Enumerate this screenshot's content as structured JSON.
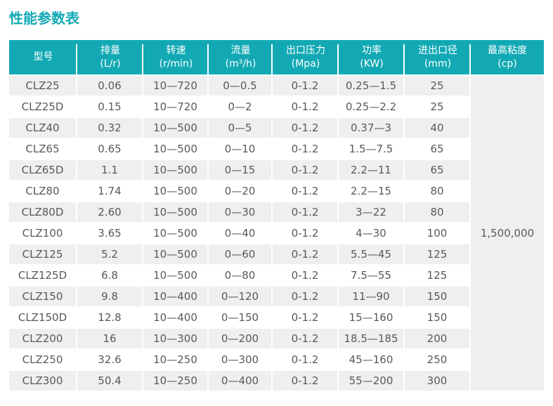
{
  "page": {
    "title": "性能参数表"
  },
  "table": {
    "headers": [
      {
        "key": "model",
        "line1": "型号",
        "line2": ""
      },
      {
        "key": "displacement",
        "line1": "排量",
        "line2": "(L/r)"
      },
      {
        "key": "speed",
        "line1": "转速",
        "line2": "(r/min)"
      },
      {
        "key": "flow",
        "line1": "流量",
        "line2": "(m³/h)"
      },
      {
        "key": "pressure",
        "line1": "出口压力",
        "line2": "(Mpa)"
      },
      {
        "key": "power",
        "line1": "功率",
        "line2": "(KW)"
      },
      {
        "key": "diameter",
        "line1": "进出口径",
        "line2": "(mm)"
      },
      {
        "key": "viscosity",
        "line1": "最高粘度",
        "line2": "(cp)"
      }
    ],
    "rows": [
      [
        "CLZ25",
        "0.06",
        "10—720",
        "0—0.5",
        "0-1.2",
        "0.25—1.5",
        "25"
      ],
      [
        "CLZ25D",
        "0.15",
        "10—720",
        "0—2",
        "0-1.2",
        "0.25—2.2",
        "25"
      ],
      [
        "CLZ40",
        "0.32",
        "10—500",
        "0—5",
        "0-1.2",
        "0.37—3",
        "40"
      ],
      [
        "CLZ65",
        "0.65",
        "10—500",
        "0—10",
        "0-1.2",
        "1.5—7.5",
        "65"
      ],
      [
        "CLZ65D",
        "1.1",
        "10—500",
        "0—15",
        "0-1.2",
        "2.2—11",
        "65"
      ],
      [
        "CLZ80",
        "1.74",
        "10—500",
        "0—20",
        "0-1.2",
        "2.2—15",
        "80"
      ],
      [
        "CLZ80D",
        "2.60",
        "10—500",
        "0—30",
        "0-1.2",
        "3—22",
        "80"
      ],
      [
        "CLZ100",
        "3.65",
        "10—500",
        "0—40",
        "0-1.2",
        "4—30",
        "100"
      ],
      [
        "CLZ125",
        "5.2",
        "10—500",
        "0—60",
        "0-1.2",
        "5.5—45",
        "125"
      ],
      [
        "CLZ125D",
        "6.8",
        "10—500",
        "0—80",
        "0-1.2",
        "7.5—55",
        "125"
      ],
      [
        "CLZ150",
        "9.8",
        "10—400",
        "0—120",
        "0-1.2",
        "11—90",
        "150"
      ],
      [
        "CLZ150D",
        "12.8",
        "10—400",
        "0—150",
        "0-1.2",
        "15—160",
        "150"
      ],
      [
        "CLZ200",
        "16",
        "10—300",
        "0—200",
        "0-1.2",
        "18.5—185",
        "200"
      ],
      [
        "CLZ250",
        "32.6",
        "10—250",
        "0—300",
        "0-1.2",
        "45—160",
        "250"
      ],
      [
        "CLZ300",
        "50.4",
        "10—250",
        "0—400",
        "0-1.2",
        "55—200",
        "300"
      ]
    ],
    "merged_viscosity": "1,500,000"
  },
  "colors": {
    "accent": "#12a9b4",
    "row_alt": "#efefef",
    "text": "#595959"
  }
}
